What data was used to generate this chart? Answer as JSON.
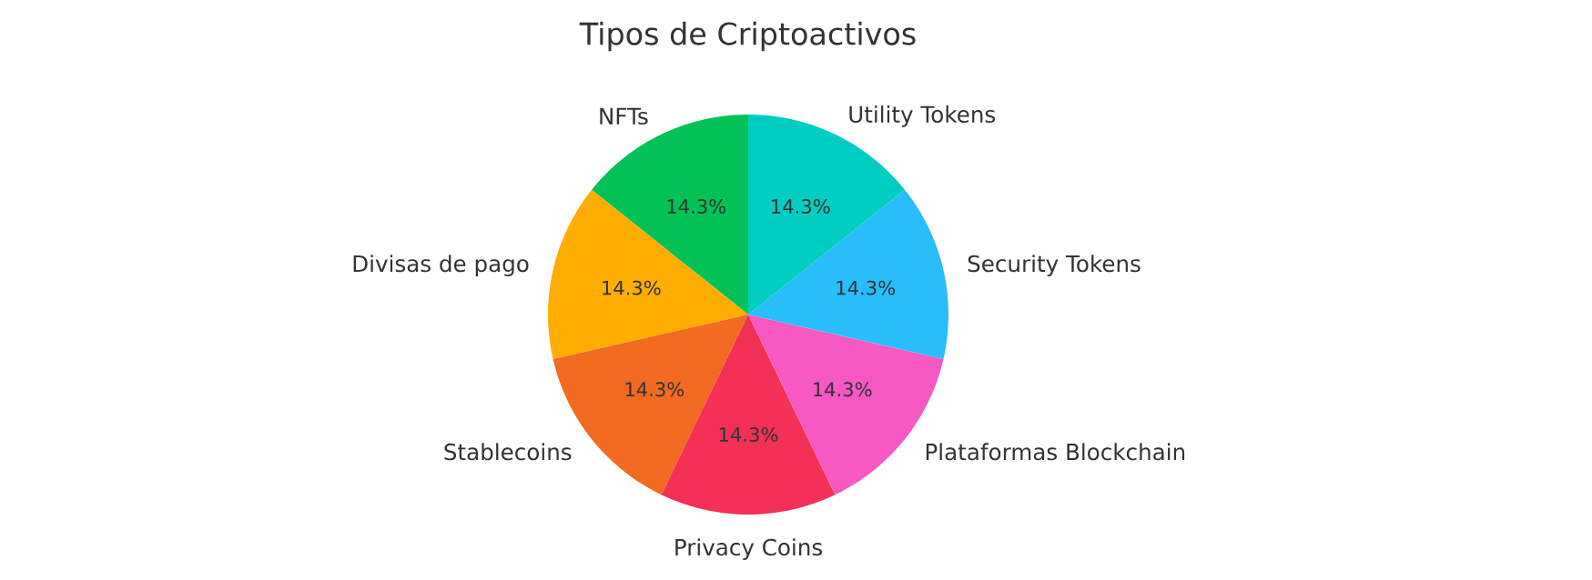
{
  "chart_data": {
    "type": "pie",
    "title": "Tipos de Criptoactivos",
    "categories": [
      "NFTs",
      "Divisas de pago",
      "Stablecoins",
      "Privacy Coins",
      "Plataformas Blockchain",
      "Security Tokens",
      "Utility Tokens"
    ],
    "values": [
      14.3,
      14.3,
      14.3,
      14.3,
      14.3,
      14.3,
      14.3
    ],
    "colors": [
      "#02c157",
      "#ffad00",
      "#f26b21",
      "#f33056",
      "#f858c2",
      "#29bdfc",
      "#00cdc2"
    ],
    "value_labels": [
      "14.3%",
      "14.3%",
      "14.3%",
      "14.3%",
      "14.3%",
      "14.3%",
      "14.3%"
    ]
  }
}
